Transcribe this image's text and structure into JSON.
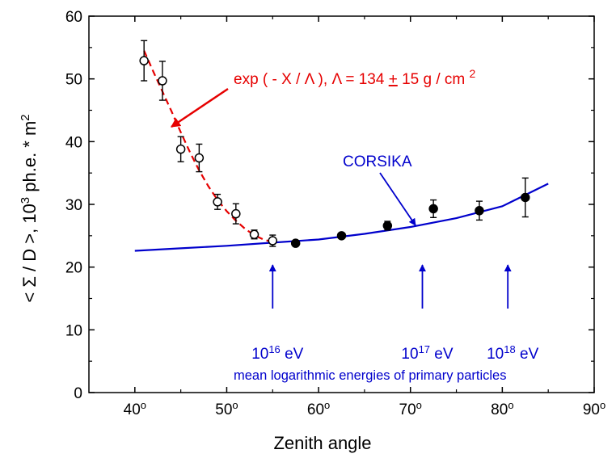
{
  "chart_data": {
    "type": "scatter",
    "xlabel": "Zenith angle",
    "ylabel": "< Σ / D >, 10 3 ph.e. * m 2",
    "ylabel_parts": {
      "main": "< Σ / D >, 10",
      "sup1": "3",
      "mid": " ph.e. * m",
      "sup2": "2"
    },
    "xlim": [
      35,
      90
    ],
    "ylim": [
      0,
      60
    ],
    "x_ticks": [
      {
        "value": 40,
        "label": "40",
        "sup": "o"
      },
      {
        "value": 50,
        "label": "50",
        "sup": "o"
      },
      {
        "value": 60,
        "label": "60",
        "sup": "o"
      },
      {
        "value": 70,
        "label": "70",
        "sup": "o"
      },
      {
        "value": 80,
        "label": "80",
        "sup": "o"
      },
      {
        "value": 90,
        "label": "90",
        "sup": "o"
      }
    ],
    "y_ticks": [
      0,
      10,
      20,
      30,
      40,
      50,
      60
    ],
    "series": [
      {
        "marker": "open-circle",
        "points": [
          {
            "x": 41,
            "y": 52.9,
            "err": 3.2
          },
          {
            "x": 43,
            "y": 49.7,
            "err": 3.1
          },
          {
            "x": 45,
            "y": 38.8,
            "err": 2.0
          },
          {
            "x": 47,
            "y": 37.4,
            "err": 2.2
          },
          {
            "x": 49,
            "y": 30.4,
            "err": 1.2
          },
          {
            "x": 51,
            "y": 28.5,
            "err": 1.6
          },
          {
            "x": 53,
            "y": 25.2,
            "err": 0.7
          },
          {
            "x": 55,
            "y": 24.2,
            "err": 0.9
          }
        ]
      },
      {
        "marker": "filled-circle",
        "points": [
          {
            "x": 57.5,
            "y": 23.8,
            "err": 0.4
          },
          {
            "x": 62.5,
            "y": 25.0,
            "err": 0.4
          },
          {
            "x": 67.5,
            "y": 26.6,
            "err": 0.7
          },
          {
            "x": 72.5,
            "y": 29.3,
            "err": 1.4
          },
          {
            "x": 77.5,
            "y": 29.0,
            "err": 1.5
          },
          {
            "x": 82.5,
            "y": 31.1,
            "err": 3.1
          }
        ]
      }
    ],
    "fit": {
      "label_main": "exp ( - X / Λ ), Λ = 134 ",
      "label_pm": "+",
      "label_rest": " 15 g / cm ",
      "label_sup": "2",
      "color": "#e60000",
      "points": [
        [
          41,
          54.5
        ],
        [
          42,
          51.2
        ],
        [
          43,
          48.0
        ],
        [
          44,
          44.8
        ],
        [
          45,
          41.5
        ],
        [
          46,
          38.3
        ],
        [
          47,
          35.4
        ],
        [
          48,
          32.9
        ],
        [
          49,
          30.7
        ],
        [
          50,
          28.9
        ],
        [
          51,
          27.4
        ],
        [
          52,
          26.1
        ],
        [
          53,
          25.1
        ],
        [
          54,
          24.4
        ],
        [
          55,
          24.0
        ]
      ]
    },
    "corsika": {
      "label": "CORSIKA",
      "color": "#0000cc",
      "points": [
        [
          40,
          22.6
        ],
        [
          45,
          23.0
        ],
        [
          50,
          23.4
        ],
        [
          55,
          23.9
        ],
        [
          60,
          24.4
        ],
        [
          65,
          25.3
        ],
        [
          70,
          26.4
        ],
        [
          75,
          27.8
        ],
        [
          80,
          29.7
        ],
        [
          85,
          33.3
        ]
      ]
    },
    "energy_arrows": [
      {
        "x": 55,
        "base": "10",
        "exp": "16",
        "unit": " eV"
      },
      {
        "x": 71.3,
        "base": "10",
        "exp": "17",
        "unit": " eV"
      },
      {
        "x": 80.6,
        "base": "10",
        "exp": "18",
        "unit": " eV"
      }
    ],
    "energy_caption": "mean logarithmic energies of primary particles",
    "grid": false,
    "colors": {
      "axis": "#000000",
      "data": "#000000",
      "fit": "#e60000",
      "model": "#0000cc"
    }
  }
}
